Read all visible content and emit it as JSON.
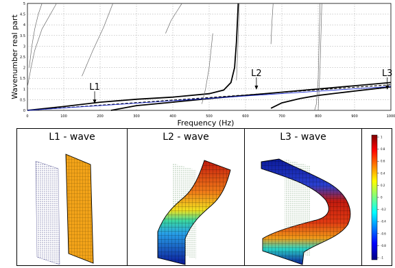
{
  "chart_data": {
    "type": "line",
    "xlabel": "Frequency (Hz)",
    "ylabel": "Wavenumber real part",
    "xlim": [
      0,
      1000
    ],
    "ylim": [
      0,
      5
    ],
    "x_ticks": [
      "0",
      "100",
      "200",
      "300",
      "400",
      "500",
      "600",
      "700",
      "800",
      "900",
      "1000"
    ],
    "y_ticks": [
      "0",
      "0.5",
      "1",
      "1.5",
      "2",
      "2.5",
      "3",
      "3.5",
      "4",
      "4.5",
      "5"
    ],
    "grid": true,
    "series": [
      {
        "style": "thick-black",
        "x": [
          0,
          100,
          200,
          300,
          400,
          500,
          540,
          560,
          570,
          575,
          580
        ],
        "y": [
          0,
          0.18,
          0.38,
          0.52,
          0.62,
          0.78,
          0.95,
          1.3,
          2.0,
          3.2,
          5.0
        ]
      },
      {
        "style": "thick-black",
        "x": [
          230,
          300,
          400,
          500,
          600,
          700,
          800,
          900,
          1000
        ],
        "y": [
          0,
          0.22,
          0.38,
          0.55,
          0.7,
          0.85,
          1.0,
          1.15,
          1.3
        ]
      },
      {
        "style": "thick-black",
        "x": [
          670,
          700,
          750,
          800,
          850,
          900,
          950,
          1000
        ],
        "y": [
          0.1,
          0.35,
          0.55,
          0.7,
          0.8,
          0.9,
          1.0,
          1.1
        ]
      },
      {
        "style": "dashed-black",
        "x": [
          0,
          250,
          500,
          750,
          1000
        ],
        "y": [
          0,
          0.3,
          0.6,
          0.9,
          1.2
        ]
      },
      {
        "style": "blue",
        "x": [
          0,
          250,
          500,
          750,
          1000
        ],
        "y": [
          0,
          0.28,
          0.56,
          0.84,
          1.12
        ]
      },
      {
        "style": "thin-gray",
        "x": [
          0,
          10,
          20,
          40,
          80
        ],
        "y": [
          1.1,
          2.0,
          2.8,
          3.8,
          5.0
        ]
      },
      {
        "style": "thin-gray",
        "x": [
          5,
          12,
          20,
          30,
          40
        ],
        "y": [
          2.0,
          3.0,
          3.8,
          4.5,
          5.0
        ]
      },
      {
        "style": "thin-gray",
        "x": [
          150,
          180,
          210,
          235
        ],
        "y": [
          1.6,
          2.8,
          3.9,
          5.0
        ]
      },
      {
        "style": "thin-gray",
        "x": [
          380,
          395,
          410,
          425
        ],
        "y": [
          3.6,
          4.2,
          4.6,
          5.0
        ]
      },
      {
        "style": "thin-gray",
        "x": [
          480,
          490,
          500,
          510
        ],
        "y": [
          0.3,
          1.0,
          2.0,
          3.6
        ]
      },
      {
        "style": "thin-gray",
        "x": [
          575,
          579,
          583
        ],
        "y": [
          1.4,
          3.0,
          5.0
        ]
      },
      {
        "style": "thin-gray",
        "x": [
          670,
          673,
          676
        ],
        "y": [
          3.1,
          4.2,
          5.0
        ]
      },
      {
        "style": "thin-gray",
        "x": [
          790,
          795,
          800,
          805
        ],
        "y": [
          0.0,
          0.3,
          1.5,
          5.0
        ]
      },
      {
        "style": "thin-gray",
        "x": [
          800,
          805,
          810
        ],
        "y": [
          0.0,
          2.0,
          5.0
        ]
      }
    ],
    "annotations": [
      {
        "text": "L1",
        "x": 185,
        "y": 0.25
      },
      {
        "text": "L2",
        "x": 630,
        "y": 0.9
      },
      {
        "text": "L3",
        "x": 990,
        "y": 0.9
      }
    ]
  },
  "panels": [
    {
      "title": "L1 - wave"
    },
    {
      "title": "L2 - wave"
    },
    {
      "title": "L3 - wave"
    }
  ],
  "colorbar": {
    "ticks": [
      "1",
      "0.8",
      "0.6",
      "0.4",
      "0.2",
      "0",
      "-0.2",
      "-0.4",
      "-0.6",
      "-0.8",
      "-1"
    ]
  }
}
